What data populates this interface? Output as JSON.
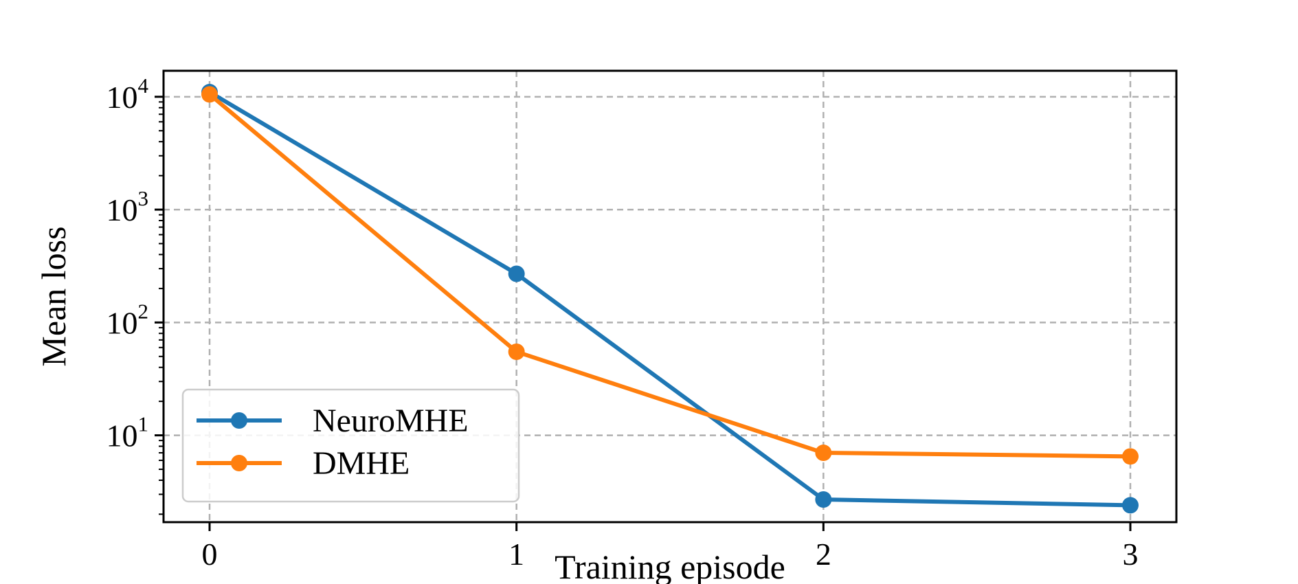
{
  "chart_data": {
    "type": "line",
    "title": "",
    "xlabel": "Training episode",
    "ylabel": "Mean loss",
    "y_scale": "log",
    "x": [
      0,
      1,
      2,
      3
    ],
    "x_ticks": [
      "0",
      "1",
      "2",
      "3"
    ],
    "xlim": [
      -0.15,
      3.15
    ],
    "ylim": [
      1.7,
      17000
    ],
    "y_ticks": [
      {
        "value": 10,
        "base": "10",
        "exp": "1"
      },
      {
        "value": 100,
        "base": "10",
        "exp": "2"
      },
      {
        "value": 1000,
        "base": "10",
        "exp": "3"
      },
      {
        "value": 10000,
        "base": "10",
        "exp": "4"
      }
    ],
    "grid": true,
    "legend_position": "lower-left",
    "series": [
      {
        "name": "NeuroMHE",
        "color": "#1f77b4",
        "values": [
          11000,
          270,
          2.7,
          2.4
        ]
      },
      {
        "name": "DMHE",
        "color": "#ff7f0e",
        "values": [
          10500,
          55,
          7.0,
          6.5
        ]
      }
    ]
  }
}
